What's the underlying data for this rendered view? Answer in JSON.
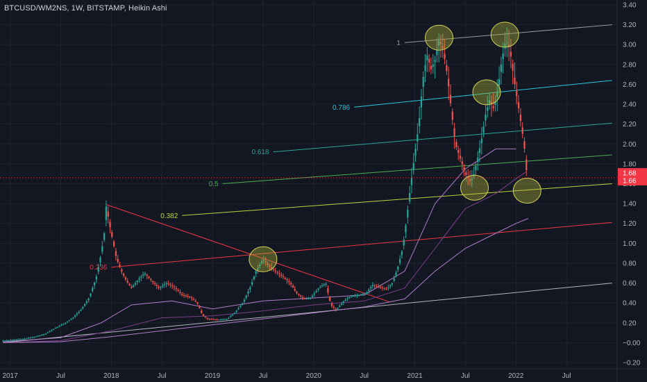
{
  "header": {
    "symbol_line": "BTCUSD/WM2NS, 1W, BITSTAMP, Heikin Ashi"
  },
  "colors": {
    "background": "#131722",
    "grid": "#1f2330",
    "up_candle": "#26a69a",
    "down_candle": "#ef5350",
    "ellipse_fill": "#b5b83b",
    "ellipse_stroke": "#d6d35a",
    "ma_purple": "#7b3f8a",
    "ma_violet": "#b07ec9",
    "last_price_badge": "#f23645",
    "axis_text": "#b2b5be"
  },
  "chart_data": {
    "type": "candlestick",
    "title": "BTCUSD/WM2NS, 1W, BITSTAMP, Heikin Ashi",
    "ylim": [
      -0.2,
      3.4
    ],
    "y_ticks": [
      3.4,
      3.2,
      3.0,
      2.8,
      2.6,
      2.4,
      2.2,
      2.0,
      1.8,
      1.6,
      1.4,
      1.2,
      1.0,
      0.8,
      0.6,
      0.4,
      0.2,
      -0.0,
      -0.2
    ],
    "y_tick_labels": [
      "3.40",
      "3.20",
      "3.00",
      "2.80",
      "2.60",
      "2.40",
      "2.20",
      "2.00",
      "1.80",
      "1.60",
      "1.40",
      "1.20",
      "1.00",
      "0.80",
      "0.60",
      "0.40",
      "0.20",
      "−0.00",
      "−0.20"
    ],
    "x_ticks": [
      2017.0,
      2017.5,
      2018.0,
      2018.5,
      2019.0,
      2019.5,
      2020.0,
      2020.5,
      2021.0,
      2021.5,
      2022.0,
      2022.5
    ],
    "x_tick_labels": [
      "2017",
      "Jul",
      "2018",
      "Jul",
      "2019",
      "Jul",
      "2020",
      "Jul",
      "2021",
      "Jul",
      "2022",
      "Jul"
    ],
    "xlim": [
      2016.9,
      2023.0
    ],
    "price_badges": [
      {
        "value": 1.68,
        "label": "1.68"
      },
      {
        "value": 1.66,
        "label": "1.66"
      }
    ],
    "price_path": [
      [
        2016.93,
        0.02
      ],
      [
        2017.05,
        0.03
      ],
      [
        2017.15,
        0.04
      ],
      [
        2017.25,
        0.06
      ],
      [
        2017.35,
        0.09
      ],
      [
        2017.45,
        0.15
      ],
      [
        2017.55,
        0.2
      ],
      [
        2017.62,
        0.25
      ],
      [
        2017.7,
        0.33
      ],
      [
        2017.78,
        0.45
      ],
      [
        2017.85,
        0.65
      ],
      [
        2017.9,
        0.9
      ],
      [
        2017.93,
        1.1
      ],
      [
        2017.95,
        1.38
      ],
      [
        2017.98,
        1.2
      ],
      [
        2018.02,
        1.0
      ],
      [
        2018.05,
        0.85
      ],
      [
        2018.1,
        0.72
      ],
      [
        2018.15,
        0.62
      ],
      [
        2018.2,
        0.55
      ],
      [
        2018.27,
        0.64
      ],
      [
        2018.33,
        0.7
      ],
      [
        2018.4,
        0.62
      ],
      [
        2018.47,
        0.55
      ],
      [
        2018.55,
        0.6
      ],
      [
        2018.62,
        0.56
      ],
      [
        2018.7,
        0.48
      ],
      [
        2018.78,
        0.46
      ],
      [
        2018.85,
        0.4
      ],
      [
        2018.9,
        0.28
      ],
      [
        2018.95,
        0.24
      ],
      [
        2019.05,
        0.23
      ],
      [
        2019.15,
        0.24
      ],
      [
        2019.22,
        0.3
      ],
      [
        2019.3,
        0.4
      ],
      [
        2019.37,
        0.55
      ],
      [
        2019.43,
        0.72
      ],
      [
        2019.5,
        0.84
      ],
      [
        2019.55,
        0.78
      ],
      [
        2019.62,
        0.72
      ],
      [
        2019.7,
        0.66
      ],
      [
        2019.77,
        0.6
      ],
      [
        2019.83,
        0.5
      ],
      [
        2019.9,
        0.44
      ],
      [
        2019.97,
        0.45
      ],
      [
        2020.05,
        0.55
      ],
      [
        2020.12,
        0.6
      ],
      [
        2020.17,
        0.38
      ],
      [
        2020.22,
        0.33
      ],
      [
        2020.3,
        0.42
      ],
      [
        2020.37,
        0.47
      ],
      [
        2020.45,
        0.48
      ],
      [
        2020.52,
        0.5
      ],
      [
        2020.58,
        0.58
      ],
      [
        2020.65,
        0.56
      ],
      [
        2020.72,
        0.54
      ],
      [
        2020.78,
        0.6
      ],
      [
        2020.83,
        0.75
      ],
      [
        2020.88,
        0.95
      ],
      [
        2020.92,
        1.25
      ],
      [
        2020.96,
        1.6
      ],
      [
        2021.0,
        1.9
      ],
      [
        2021.04,
        2.2
      ],
      [
        2021.08,
        2.65
      ],
      [
        2021.12,
        2.9
      ],
      [
        2021.16,
        2.75
      ],
      [
        2021.2,
        2.85
      ],
      [
        2021.24,
        3.05
      ],
      [
        2021.28,
        2.95
      ],
      [
        2021.32,
        2.7
      ],
      [
        2021.36,
        2.35
      ],
      [
        2021.4,
        2.0
      ],
      [
        2021.45,
        1.85
      ],
      [
        2021.5,
        1.7
      ],
      [
        2021.55,
        1.62
      ],
      [
        2021.58,
        1.68
      ],
      [
        2021.62,
        1.85
      ],
      [
        2021.66,
        2.05
      ],
      [
        2021.7,
        2.3
      ],
      [
        2021.74,
        2.45
      ],
      [
        2021.78,
        2.35
      ],
      [
        2021.82,
        2.55
      ],
      [
        2021.86,
        2.85
      ],
      [
        2021.9,
        3.05
      ],
      [
        2021.94,
        2.95
      ],
      [
        2021.98,
        2.65
      ],
      [
        2022.02,
        2.4
      ],
      [
        2022.05,
        2.2
      ],
      [
        2022.08,
        2.0
      ],
      [
        2022.1,
        1.75
      ],
      [
        2022.12,
        1.66
      ]
    ],
    "moving_averages": [
      {
        "name": "",
        "points": [
          [
            2016.93,
            0.01
          ],
          [
            2017.5,
            0.05
          ],
          [
            2017.9,
            0.2
          ],
          [
            2018.2,
            0.38
          ],
          [
            2018.6,
            0.42
          ],
          [
            2019.0,
            0.34
          ],
          [
            2019.5,
            0.42
          ],
          [
            2020.0,
            0.45
          ],
          [
            2020.5,
            0.48
          ],
          [
            2020.9,
            0.72
          ],
          [
            2021.2,
            1.4
          ],
          [
            2021.5,
            1.75
          ],
          [
            2021.8,
            1.95
          ],
          [
            2022.0,
            1.95
          ]
        ]
      },
      {
        "name": "",
        "points": [
          [
            2016.93,
            0.0
          ],
          [
            2017.5,
            0.02
          ],
          [
            2018.0,
            0.12
          ],
          [
            2018.5,
            0.25
          ],
          [
            2019.0,
            0.27
          ],
          [
            2019.5,
            0.32
          ],
          [
            2020.0,
            0.38
          ],
          [
            2020.5,
            0.42
          ],
          [
            2020.9,
            0.55
          ],
          [
            2021.2,
            0.95
          ],
          [
            2021.5,
            1.35
          ],
          [
            2021.8,
            1.5
          ],
          [
            2022.0,
            1.65
          ],
          [
            2022.1,
            1.72
          ]
        ]
      },
      {
        "name": "",
        "points": [
          [
            2016.93,
            0.0
          ],
          [
            2017.5,
            0.01
          ],
          [
            2018.0,
            0.06
          ],
          [
            2018.5,
            0.12
          ],
          [
            2019.0,
            0.18
          ],
          [
            2019.5,
            0.24
          ],
          [
            2020.0,
            0.3
          ],
          [
            2020.5,
            0.36
          ],
          [
            2020.9,
            0.44
          ],
          [
            2021.2,
            0.72
          ],
          [
            2021.5,
            0.95
          ],
          [
            2021.8,
            1.1
          ],
          [
            2022.0,
            1.2
          ],
          [
            2022.12,
            1.25
          ]
        ]
      }
    ],
    "trendlines": [
      {
        "name": "",
        "color": "#b2b5be",
        "points": [
          [
            2016.93,
            0.0
          ],
          [
            2022.95,
            0.6
          ]
        ]
      },
      {
        "name": "",
        "color": "#f23645",
        "points": [
          [
            2017.95,
            1.39
          ],
          [
            2020.75,
            0.41
          ]
        ]
      }
    ],
    "fib_channel": [
      {
        "label": "1",
        "color": "#9598a1",
        "points": [
          [
            2020.9,
            3.02
          ],
          [
            2022.95,
            3.2
          ]
        ]
      },
      {
        "label": "0.786",
        "color": "#26c6da",
        "points": [
          [
            2020.4,
            2.37
          ],
          [
            2022.95,
            2.64
          ]
        ]
      },
      {
        "label": "0.618",
        "color": "#26a69a",
        "points": [
          [
            2019.6,
            1.92
          ],
          [
            2022.95,
            2.21
          ]
        ]
      },
      {
        "label": "0.5",
        "color": "#4caf50",
        "points": [
          [
            2019.1,
            1.6
          ],
          [
            2022.95,
            1.89
          ]
        ]
      },
      {
        "label": "0.382",
        "color": "#c5d33a",
        "points": [
          [
            2018.7,
            1.28
          ],
          [
            2022.95,
            1.6
          ]
        ]
      },
      {
        "label": "0.236",
        "color": "#f23645",
        "points": [
          [
            2018.0,
            0.76
          ],
          [
            2022.95,
            1.21
          ]
        ]
      }
    ],
    "highlight_ellipses": [
      {
        "x": 2021.24,
        "y": 3.07
      },
      {
        "x": 2021.89,
        "y": 3.1
      },
      {
        "x": 2021.71,
        "y": 2.52
      },
      {
        "x": 2021.59,
        "y": 1.56
      },
      {
        "x": 2022.11,
        "y": 1.53
      },
      {
        "x": 2019.5,
        "y": 0.84
      }
    ]
  }
}
